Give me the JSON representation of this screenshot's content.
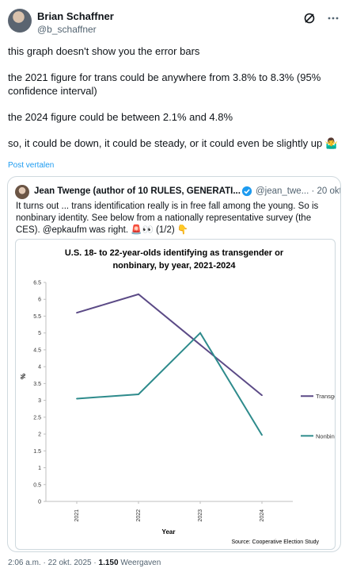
{
  "author": {
    "name": "Brian Schaffner",
    "handle": "@b_schaffner"
  },
  "icons": {
    "grok": "grok-icon",
    "more": "more-icon"
  },
  "tweet": {
    "lines": [
      "this graph doesn't show you the error bars",
      "the 2021 figure for trans could be anywhere from 3.8% to 8.3% (95% confidence interval)",
      "the 2024 figure could be between 2.1% and 4.8%",
      "so, it could be down, it could be steady, or it could even be slightly up 🤷‍♂️"
    ],
    "translate_label": "Post vertalen"
  },
  "quote": {
    "name": "Jean Twenge (author of 10 RULES, GENERATI...",
    "handle_date": "@jean_twe... · 20 okt.",
    "text": "It turns out ... trans identification really is in free fall among the young. So is nonbinary identity. See below from a nationally representative survey (the CES).  @epkaufm was right. 🚨👀 (1/2) 👇"
  },
  "chart_data": {
    "type": "line",
    "title": "U.S. 18- to 22-year-olds identifying as transgender or nonbinary, by year, 2021-2024",
    "title_line1": "U.S. 18- to 22-year-olds identifying as transgender or",
    "title_line2": "nonbinary, by year, 2021-2024",
    "xlabel": "Year",
    "ylabel": "%",
    "categories": [
      "2021",
      "2022",
      "2023",
      "2024"
    ],
    "ylim": [
      0,
      6.5
    ],
    "yticks": [
      "0",
      "0.5",
      "1",
      "1.5",
      "2",
      "2.5",
      "3",
      "3.5",
      "4",
      "4.5",
      "5",
      "5.5",
      "6",
      "6.5"
    ],
    "series": [
      {
        "name": "Transgender",
        "values": [
          5.6,
          6.15,
          4.65,
          3.15
        ],
        "color": "#5b4a86"
      },
      {
        "name": "Nonbinary",
        "values": [
          3.05,
          3.18,
          5.0,
          1.97
        ],
        "color": "#2e8b8c"
      }
    ],
    "source": "Source: Cooperative Election Study",
    "grid": false,
    "legend": "right"
  },
  "footer": {
    "time_date": "2:06 a.m. · 22 okt. 2025 · ",
    "views_count": "1.150",
    "views_label": " Weergaven"
  }
}
